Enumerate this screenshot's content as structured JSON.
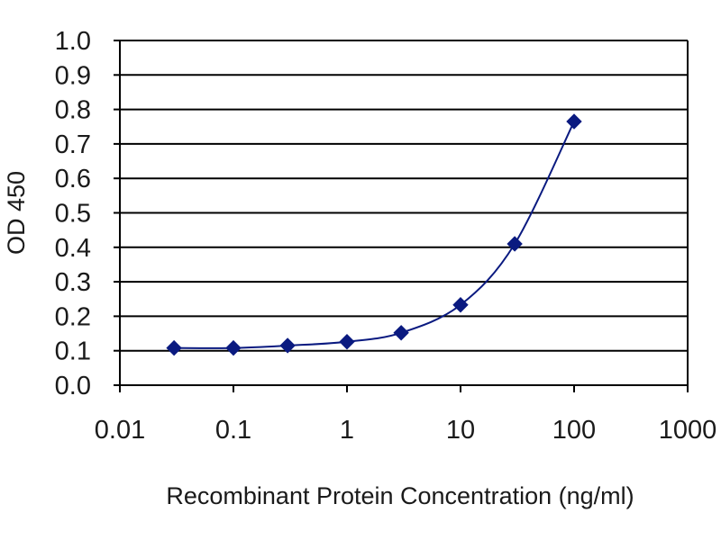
{
  "chart_data": {
    "type": "scatter",
    "title": "",
    "xlabel": "Recombinant Protein Concentration (ng/ml)",
    "ylabel": "OD 450",
    "x_scale": "log",
    "xlim": [
      0.01,
      1000
    ],
    "ylim": [
      0.0,
      1.0
    ],
    "x_ticks": [
      "0.01",
      "0.1",
      "1",
      "10",
      "100",
      "1000"
    ],
    "y_ticks": [
      "0.0",
      "0.1",
      "0.2",
      "0.3",
      "0.4",
      "0.5",
      "0.6",
      "0.7",
      "0.8",
      "0.9",
      "1.0"
    ],
    "grid": "horizontal",
    "legend": "none",
    "series": [
      {
        "x": [
          0.03,
          0.1,
          0.3,
          1,
          3,
          10,
          30,
          100
        ],
        "y": [
          0.108,
          0.108,
          0.115,
          0.126,
          0.152,
          0.233,
          0.41,
          0.765
        ],
        "marker": "diamond",
        "fitted_curve": true
      }
    ],
    "colors": {
      "series": "#0a1a80",
      "plot_background": "#ffffff",
      "grid": "#000000"
    }
  }
}
